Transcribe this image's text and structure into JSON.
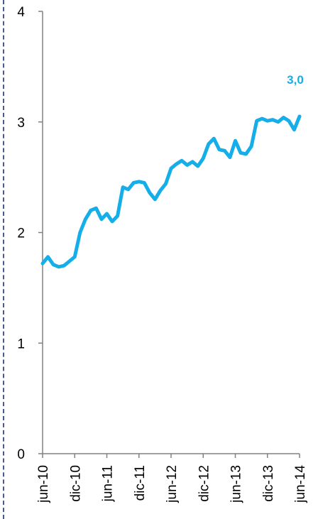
{
  "chart_data": {
    "type": "line",
    "title": "",
    "xlabel": "",
    "ylabel": "",
    "ylim": [
      0,
      4
    ],
    "yticks": [
      0,
      1,
      2,
      3,
      4
    ],
    "x_tick_labels": [
      "jun-10",
      "dic-10",
      "jun-11",
      "dic-11",
      "jun-12",
      "dic-12",
      "jun-13",
      "dic-13",
      "jun-14"
    ],
    "x_tick_positions": [
      0,
      6,
      12,
      18,
      24,
      30,
      36,
      42,
      48
    ],
    "grid": false,
    "legend": "none",
    "end_label": "3,0",
    "line_color": "#15aee8",
    "series": [
      {
        "values": [
          1.72,
          1.78,
          1.71,
          1.69,
          1.7,
          1.74,
          1.78,
          2.0,
          2.12,
          2.2,
          2.22,
          2.12,
          2.17,
          2.1,
          2.15,
          2.41,
          2.39,
          2.45,
          2.46,
          2.45,
          2.36,
          2.3,
          2.38,
          2.44,
          2.58,
          2.62,
          2.65,
          2.61,
          2.64,
          2.6,
          2.67,
          2.8,
          2.85,
          2.75,
          2.74,
          2.68,
          2.83,
          2.72,
          2.71,
          2.78,
          3.01,
          3.03,
          3.01,
          3.02,
          3.0,
          3.04,
          3.01,
          2.93,
          3.05
        ]
      }
    ]
  }
}
